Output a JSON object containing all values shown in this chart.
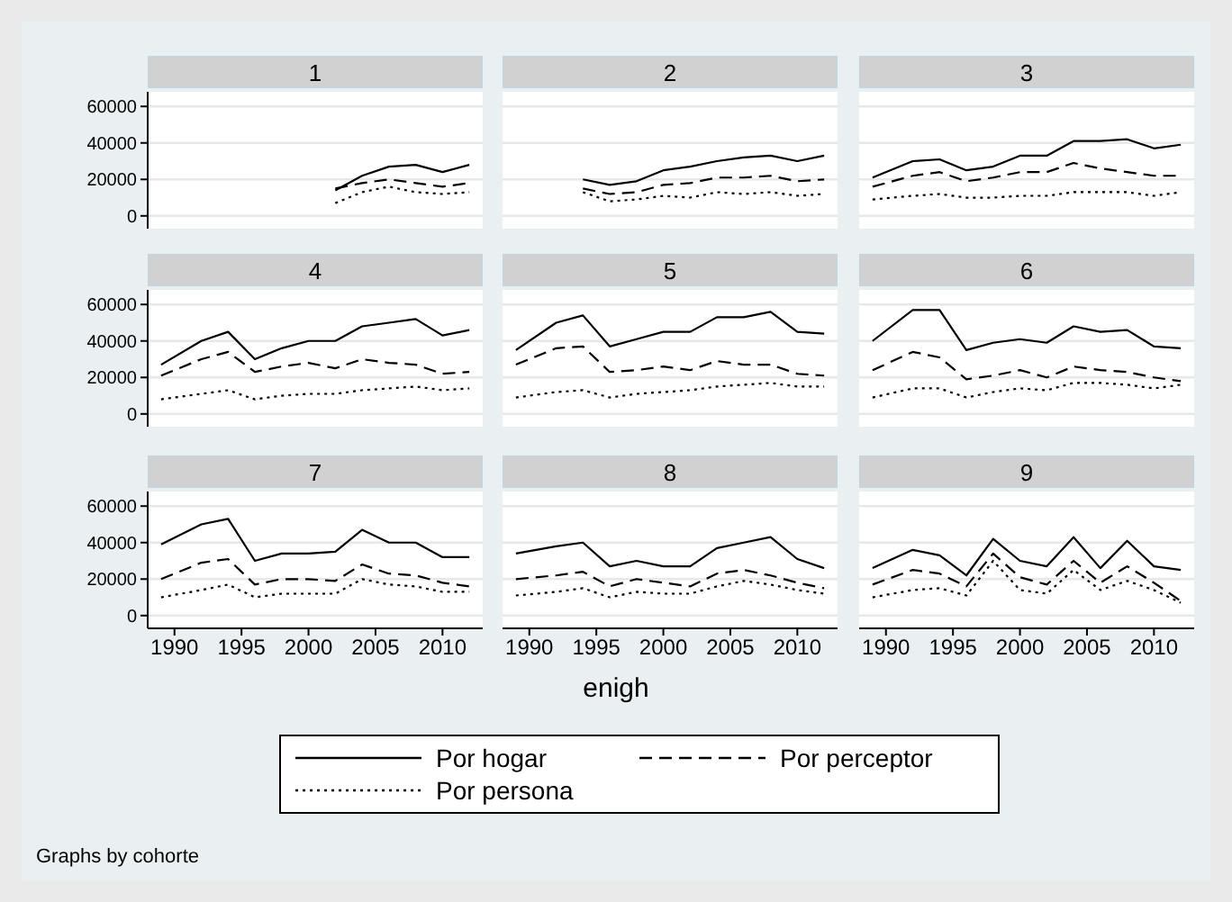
{
  "chart_data": [
    {
      "type": "line",
      "title": "1",
      "xlabel": "enigh",
      "legend": "bottom",
      "annotations": [
        "Graphs by cohorte"
      ],
      "x": [
        2002,
        2004,
        2006,
        2008,
        2010,
        2012
      ],
      "xlim": [
        1988,
        2013
      ],
      "xticks": [
        1990,
        1995,
        2000,
        2005,
        2010
      ],
      "ylim": [
        -7000,
        68000
      ],
      "yticks": [
        0,
        20000,
        40000,
        60000
      ],
      "grid": "y",
      "tick_labels": "y",
      "series": [
        {
          "name": "Por hogar",
          "color": "#000000",
          "line_style": "solid",
          "values": [
            14000,
            22000,
            27000,
            28000,
            24000,
            28000
          ]
        },
        {
          "name": "Por perceptor",
          "color": "#000000",
          "line_style": "dashed",
          "values": [
            15000,
            18000,
            20000,
            18000,
            16000,
            18000
          ]
        },
        {
          "name": "Por persona",
          "color": "#000000",
          "line_style": "dotted",
          "values": [
            7000,
            13000,
            16000,
            13000,
            12000,
            13000
          ]
        }
      ]
    },
    {
      "type": "line",
      "title": "2",
      "x": [
        1994,
        1996,
        1998,
        2000,
        2002,
        2004,
        2006,
        2008,
        2010,
        2012
      ],
      "xlim": [
        1988,
        2013
      ],
      "xticks": [
        1990,
        1995,
        2000,
        2005,
        2010
      ],
      "ylim": [
        -7000,
        68000
      ],
      "yticks": [
        0,
        20000,
        40000,
        60000
      ],
      "grid": "y",
      "tick_labels": false,
      "series": [
        {
          "color": "#000000",
          "line_style": "solid",
          "values": [
            20000,
            17000,
            19000,
            25000,
            27000,
            30000,
            32000,
            33000,
            30000,
            33000
          ]
        },
        {
          "color": "#000000",
          "line_style": "dashed",
          "values": [
            15000,
            12000,
            13000,
            17000,
            18000,
            21000,
            21000,
            22000,
            19000,
            20000
          ]
        },
        {
          "color": "#000000",
          "line_style": "dotted",
          "values": [
            13000,
            8000,
            9000,
            11000,
            10000,
            13000,
            12000,
            13000,
            11000,
            12000
          ]
        }
      ]
    },
    {
      "type": "line",
      "title": "3",
      "x": [
        1989,
        1992,
        1994,
        1996,
        1998,
        2000,
        2002,
        2004,
        2006,
        2008,
        2010,
        2012
      ],
      "xlim": [
        1988,
        2013
      ],
      "xticks": [
        1990,
        1995,
        2000,
        2005,
        2010
      ],
      "ylim": [
        -7000,
        68000
      ],
      "yticks": [
        0,
        20000,
        40000,
        60000
      ],
      "grid": "y",
      "tick_labels": false,
      "series": [
        {
          "color": "#000000",
          "line_style": "solid",
          "values": [
            21000,
            30000,
            31000,
            25000,
            27000,
            33000,
            33000,
            41000,
            41000,
            42000,
            37000,
            39000
          ]
        },
        {
          "color": "#000000",
          "line_style": "dashed",
          "values": [
            16000,
            22000,
            24000,
            19000,
            21000,
            24000,
            24000,
            29000,
            26000,
            24000,
            22000,
            22000
          ]
        },
        {
          "color": "#000000",
          "line_style": "dotted",
          "values": [
            9000,
            11000,
            12000,
            10000,
            10000,
            11000,
            11000,
            13000,
            13000,
            13000,
            11000,
            13000
          ]
        }
      ]
    },
    {
      "type": "line",
      "title": "4",
      "x": [
        1989,
        1992,
        1994,
        1996,
        1998,
        2000,
        2002,
        2004,
        2006,
        2008,
        2010,
        2012
      ],
      "xlim": [
        1988,
        2013
      ],
      "xticks": [
        1990,
        1995,
        2000,
        2005,
        2010
      ],
      "ylim": [
        -7000,
        68000
      ],
      "yticks": [
        0,
        20000,
        40000,
        60000
      ],
      "grid": "y",
      "tick_labels": "y",
      "series": [
        {
          "color": "#000000",
          "line_style": "solid",
          "values": [
            27000,
            40000,
            45000,
            30000,
            36000,
            40000,
            40000,
            48000,
            50000,
            52000,
            43000,
            46000
          ]
        },
        {
          "color": "#000000",
          "line_style": "dashed",
          "values": [
            21000,
            30000,
            34000,
            23000,
            26000,
            28000,
            25000,
            30000,
            28000,
            27000,
            22000,
            23000
          ]
        },
        {
          "color": "#000000",
          "line_style": "dotted",
          "values": [
            8000,
            11000,
            13000,
            8000,
            10000,
            11000,
            11000,
            13000,
            14000,
            15000,
            13000,
            14000
          ]
        }
      ]
    },
    {
      "type": "line",
      "title": "5",
      "x": [
        1989,
        1992,
        1994,
        1996,
        1998,
        2000,
        2002,
        2004,
        2006,
        2008,
        2010,
        2012
      ],
      "xlim": [
        1988,
        2013
      ],
      "xticks": [
        1990,
        1995,
        2000,
        2005,
        2010
      ],
      "ylim": [
        -7000,
        68000
      ],
      "yticks": [
        0,
        20000,
        40000,
        60000
      ],
      "grid": "y",
      "tick_labels": false,
      "series": [
        {
          "color": "#000000",
          "line_style": "solid",
          "values": [
            35000,
            50000,
            54000,
            37000,
            41000,
            45000,
            45000,
            53000,
            53000,
            56000,
            45000,
            44000
          ]
        },
        {
          "color": "#000000",
          "line_style": "dashed",
          "values": [
            27000,
            36000,
            37000,
            23000,
            24000,
            26000,
            24000,
            29000,
            27000,
            27000,
            22000,
            21000
          ]
        },
        {
          "color": "#000000",
          "line_style": "dotted",
          "values": [
            9000,
            12000,
            13000,
            9000,
            11000,
            12000,
            13000,
            15000,
            16000,
            17000,
            15000,
            15000
          ]
        }
      ]
    },
    {
      "type": "line",
      "title": "6",
      "x": [
        1989,
        1992,
        1994,
        1996,
        1998,
        2000,
        2002,
        2004,
        2006,
        2008,
        2010,
        2012
      ],
      "xlim": [
        1988,
        2013
      ],
      "xticks": [
        1990,
        1995,
        2000,
        2005,
        2010
      ],
      "ylim": [
        -7000,
        68000
      ],
      "yticks": [
        0,
        20000,
        40000,
        60000
      ],
      "grid": "y",
      "tick_labels": false,
      "series": [
        {
          "color": "#000000",
          "line_style": "solid",
          "values": [
            40000,
            57000,
            57000,
            35000,
            39000,
            41000,
            39000,
            48000,
            45000,
            46000,
            37000,
            36000
          ]
        },
        {
          "color": "#000000",
          "line_style": "dashed",
          "values": [
            24000,
            34000,
            31000,
            19000,
            21000,
            24000,
            20000,
            26000,
            24000,
            23000,
            20000,
            18000
          ]
        },
        {
          "color": "#000000",
          "line_style": "dotted",
          "values": [
            9000,
            14000,
            14000,
            9000,
            12000,
            14000,
            13000,
            17000,
            17000,
            16000,
            14000,
            16000
          ]
        }
      ]
    },
    {
      "type": "line",
      "title": "7",
      "x": [
        1989,
        1992,
        1994,
        1996,
        1998,
        2000,
        2002,
        2004,
        2006,
        2008,
        2010,
        2012
      ],
      "xlim": [
        1988,
        2013
      ],
      "xticks": [
        1990,
        1995,
        2000,
        2005,
        2010
      ],
      "ylim": [
        -7000,
        68000
      ],
      "yticks": [
        0,
        20000,
        40000,
        60000
      ],
      "grid": "y",
      "series": [
        {
          "color": "#000000",
          "line_style": "solid",
          "values": [
            39000,
            50000,
            53000,
            30000,
            34000,
            34000,
            35000,
            47000,
            40000,
            40000,
            32000,
            32000
          ]
        },
        {
          "color": "#000000",
          "line_style": "dashed",
          "values": [
            20000,
            29000,
            31000,
            17000,
            20000,
            20000,
            19000,
            28000,
            23000,
            22000,
            18000,
            16000
          ]
        },
        {
          "color": "#000000",
          "line_style": "dotted",
          "values": [
            10000,
            14000,
            17000,
            10000,
            12000,
            12000,
            12000,
            20000,
            17000,
            16000,
            13000,
            13000
          ]
        }
      ]
    },
    {
      "type": "line",
      "title": "8",
      "x": [
        1989,
        1992,
        1994,
        1996,
        1998,
        2000,
        2002,
        2004,
        2006,
        2008,
        2010,
        2012
      ],
      "xlim": [
        1988,
        2013
      ],
      "xticks": [
        1990,
        1995,
        2000,
        2005,
        2010
      ],
      "ylim": [
        -7000,
        68000
      ],
      "yticks": [
        0,
        20000,
        40000,
        60000
      ],
      "grid": "y",
      "tick_labels": "x",
      "series": [
        {
          "color": "#000000",
          "line_style": "solid",
          "values": [
            34000,
            38000,
            40000,
            27000,
            30000,
            27000,
            27000,
            37000,
            40000,
            43000,
            31000,
            26000
          ]
        },
        {
          "color": "#000000",
          "line_style": "dashed",
          "values": [
            20000,
            22000,
            24000,
            16000,
            20000,
            18000,
            16000,
            23000,
            25000,
            22000,
            18000,
            15000
          ]
        },
        {
          "color": "#000000",
          "line_style": "dotted",
          "values": [
            11000,
            13000,
            15000,
            10000,
            13000,
            12000,
            12000,
            16000,
            19000,
            17000,
            14000,
            12000
          ]
        }
      ]
    },
    {
      "type": "line",
      "title": "9",
      "x": [
        1989,
        1992,
        1994,
        1996,
        1998,
        2000,
        2002,
        2004,
        2006,
        2008,
        2010,
        2012
      ],
      "xlim": [
        1988,
        2013
      ],
      "xticks": [
        1990,
        1995,
        2000,
        2005,
        2010
      ],
      "ylim": [
        -7000,
        68000
      ],
      "yticks": [
        0,
        20000,
        40000,
        60000
      ],
      "grid": "y",
      "tick_labels": "x",
      "series": [
        {
          "color": "#000000",
          "line_style": "solid",
          "values": [
            26000,
            36000,
            33000,
            22000,
            42000,
            30000,
            27000,
            43000,
            26000,
            41000,
            27000,
            25000
          ]
        },
        {
          "color": "#000000",
          "line_style": "dashed",
          "values": [
            17000,
            25000,
            23000,
            16000,
            34000,
            21000,
            17000,
            30000,
            18000,
            27000,
            18000,
            8000
          ]
        },
        {
          "color": "#000000",
          "line_style": "dotted",
          "values": [
            10000,
            14000,
            15000,
            11000,
            30000,
            14000,
            12000,
            25000,
            14000,
            19000,
            14000,
            7000
          ]
        }
      ]
    }
  ]
}
